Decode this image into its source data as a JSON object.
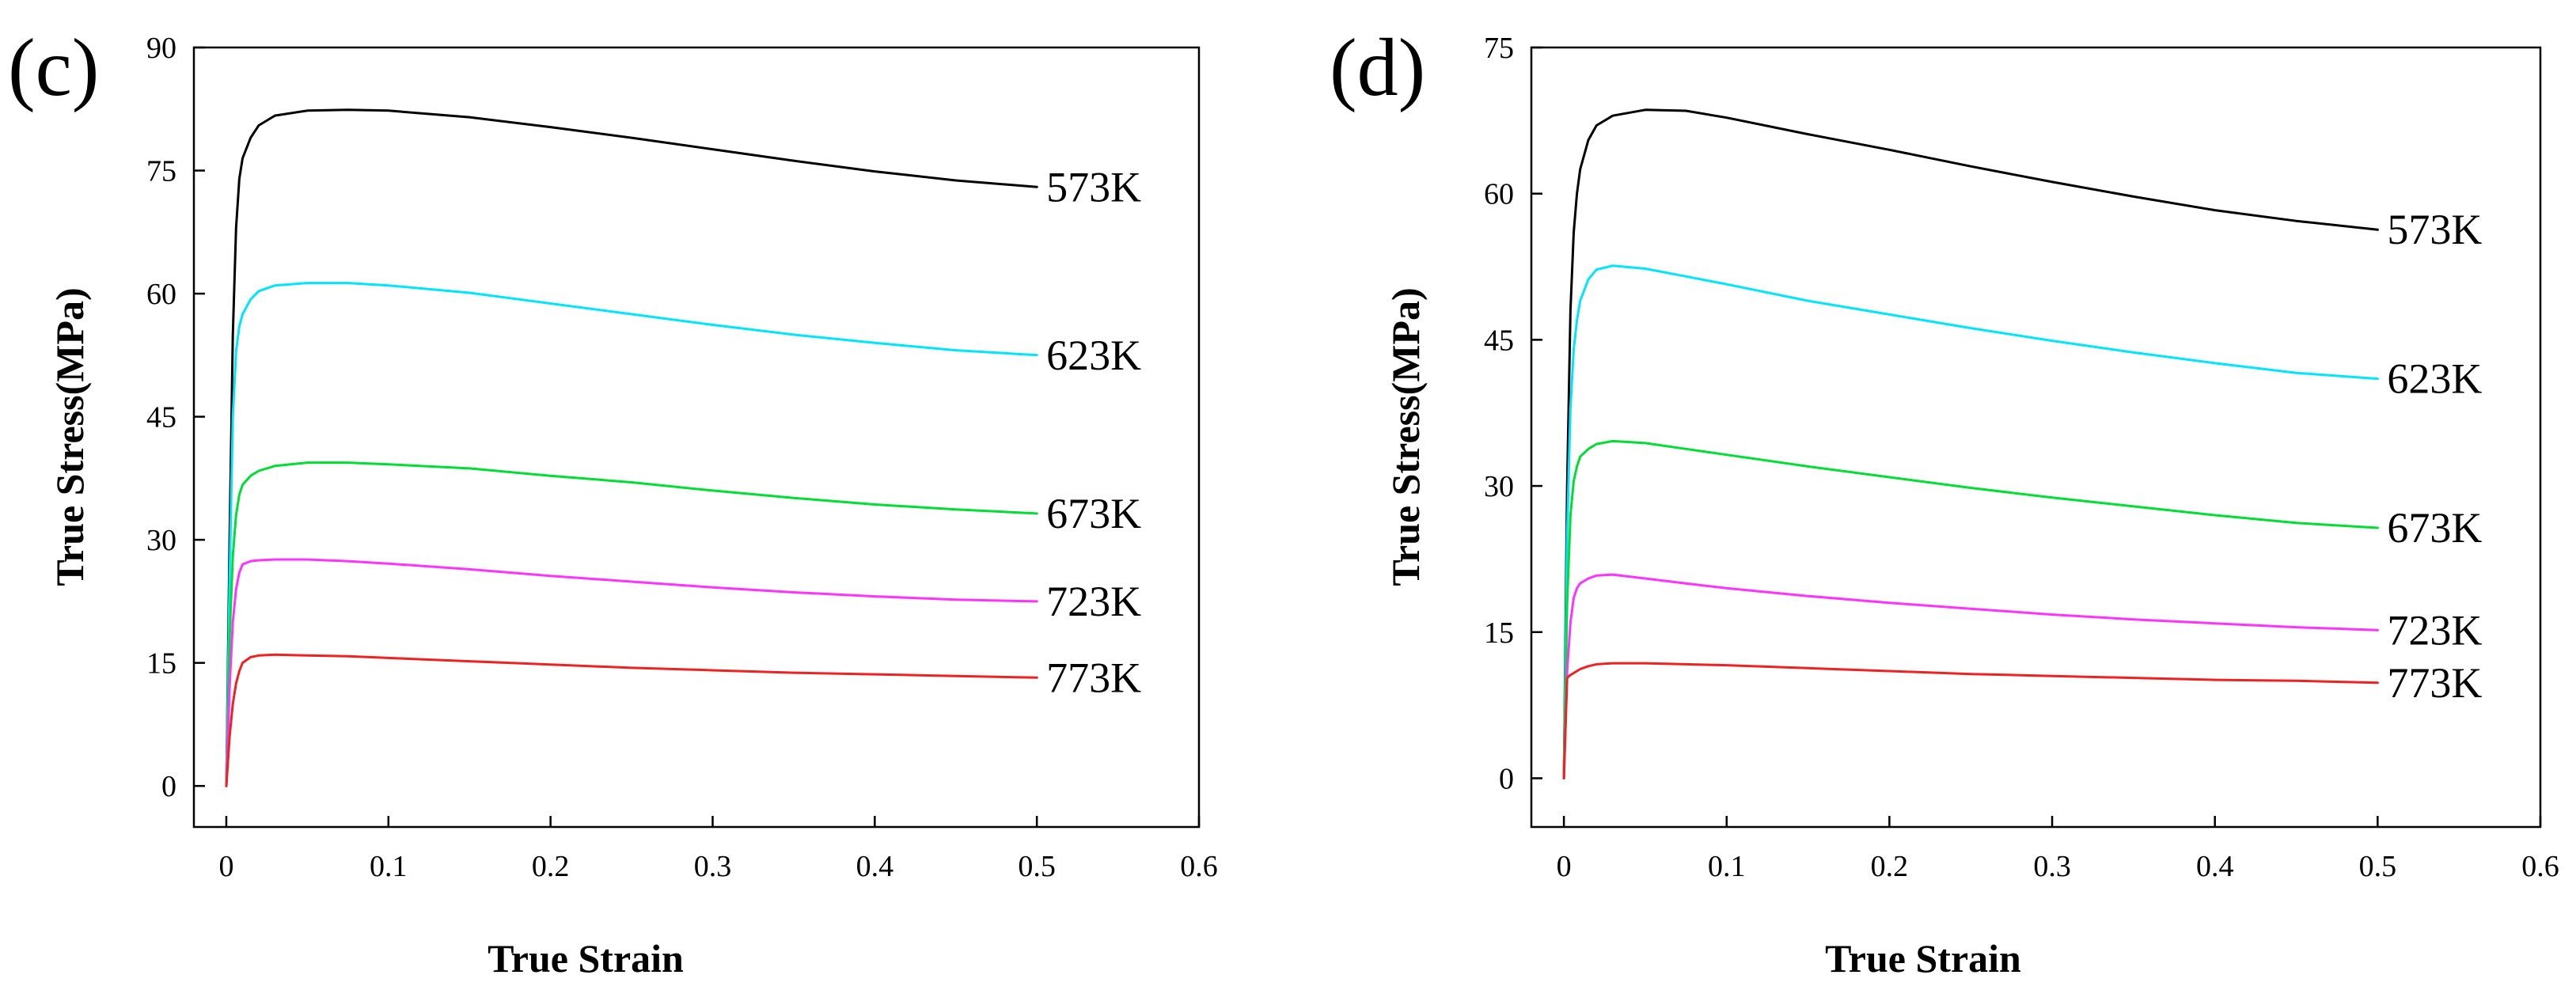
{
  "chart_data": [
    {
      "type": "line",
      "panel_label": "(c)",
      "title": "",
      "xlabel": "True Strain",
      "ylabel": "True Stress(MPa)",
      "xlim": [
        -0.02,
        0.6
      ],
      "ylim": [
        -5,
        90
      ],
      "xticks": [
        0,
        0.1,
        0.2,
        0.3,
        0.4,
        0.5,
        0.6
      ],
      "xtick_labels": [
        "0",
        "0.1",
        "0.2",
        "0.3",
        "0.4",
        "0.5",
        "0.6"
      ],
      "yticks": [
        0,
        15,
        30,
        45,
        60,
        75,
        90
      ],
      "ytick_labels": [
        "0",
        "15",
        "30",
        "45",
        "60",
        "75",
        "90"
      ],
      "grid": false,
      "legend": "inline labels at line ends",
      "series": [
        {
          "name": "573K",
          "color": "#000000",
          "x": [
            0,
            0.002,
            0.004,
            0.006,
            0.008,
            0.01,
            0.015,
            0.02,
            0.03,
            0.05,
            0.075,
            0.1,
            0.15,
            0.2,
            0.25,
            0.3,
            0.35,
            0.4,
            0.45,
            0.5
          ],
          "y": [
            0,
            30,
            55,
            68,
            74,
            76.5,
            79,
            80.5,
            81.7,
            82.3,
            82.4,
            82.3,
            81.5,
            80.3,
            79,
            77.6,
            76.2,
            74.9,
            73.8,
            73
          ]
        },
        {
          "name": "623K",
          "color": "#00e5ff",
          "x": [
            0,
            0.002,
            0.004,
            0.006,
            0.008,
            0.01,
            0.015,
            0.02,
            0.03,
            0.05,
            0.075,
            0.1,
            0.15,
            0.2,
            0.25,
            0.3,
            0.35,
            0.4,
            0.45,
            0.5
          ],
          "y": [
            0,
            25,
            45,
            53,
            56,
            57.5,
            59.3,
            60.3,
            61,
            61.3,
            61.3,
            61,
            60.1,
            58.8,
            57.5,
            56.2,
            55,
            54,
            53.1,
            52.5
          ]
        },
        {
          "name": "673K",
          "color": "#00dd33",
          "x": [
            0,
            0.002,
            0.004,
            0.006,
            0.008,
            0.01,
            0.015,
            0.02,
            0.03,
            0.05,
            0.075,
            0.1,
            0.15,
            0.2,
            0.25,
            0.3,
            0.35,
            0.4,
            0.45,
            0.5
          ],
          "y": [
            0,
            18,
            28,
            33,
            35.5,
            36.7,
            37.8,
            38.4,
            39,
            39.4,
            39.4,
            39.2,
            38.7,
            37.8,
            37,
            36,
            35.1,
            34.3,
            33.7,
            33.2
          ]
        },
        {
          "name": "723K",
          "color": "#ff33ff",
          "x": [
            0,
            0.002,
            0.004,
            0.006,
            0.008,
            0.01,
            0.015,
            0.02,
            0.03,
            0.05,
            0.075,
            0.1,
            0.15,
            0.2,
            0.25,
            0.3,
            0.35,
            0.4,
            0.45,
            0.5
          ],
          "y": [
            0,
            12,
            20,
            24,
            26,
            27,
            27.4,
            27.5,
            27.6,
            27.6,
            27.4,
            27.1,
            26.4,
            25.6,
            24.9,
            24.2,
            23.6,
            23.1,
            22.7,
            22.5
          ]
        },
        {
          "name": "773K",
          "color": "#ee2222",
          "x": [
            0,
            0.002,
            0.004,
            0.006,
            0.008,
            0.01,
            0.015,
            0.02,
            0.03,
            0.05,
            0.075,
            0.1,
            0.15,
            0.2,
            0.25,
            0.3,
            0.35,
            0.4,
            0.45,
            0.5
          ],
          "y": [
            0,
            6,
            10,
            12.5,
            14,
            15,
            15.7,
            15.9,
            16,
            15.9,
            15.8,
            15.6,
            15.2,
            14.8,
            14.4,
            14.1,
            13.8,
            13.6,
            13.4,
            13.2
          ]
        }
      ]
    },
    {
      "type": "line",
      "panel_label": "(d)",
      "title": "",
      "xlabel": "True Strain",
      "ylabel": "True Stress(MPa)",
      "xlim": [
        -0.02,
        0.6
      ],
      "ylim": [
        -5,
        75
      ],
      "xticks": [
        0,
        0.1,
        0.2,
        0.3,
        0.4,
        0.5,
        0.6
      ],
      "xtick_labels": [
        "0",
        "0.1",
        "0.2",
        "0.3",
        "0.4",
        "0.5",
        "0.6"
      ],
      "yticks": [
        0,
        15,
        30,
        45,
        60,
        75
      ],
      "ytick_labels": [
        "0",
        "15",
        "30",
        "45",
        "60",
        "75"
      ],
      "grid": false,
      "legend": "inline labels at line ends",
      "series": [
        {
          "name": "573K",
          "color": "#000000",
          "x": [
            0,
            0.002,
            0.004,
            0.006,
            0.008,
            0.01,
            0.015,
            0.02,
            0.03,
            0.05,
            0.075,
            0.1,
            0.15,
            0.2,
            0.25,
            0.3,
            0.35,
            0.4,
            0.45,
            0.5
          ],
          "y": [
            0,
            30,
            48,
            56,
            60,
            62.5,
            65.5,
            67,
            68,
            68.6,
            68.5,
            67.8,
            66.1,
            64.5,
            62.8,
            61.2,
            59.7,
            58.3,
            57.2,
            56.3
          ]
        },
        {
          "name": "623K",
          "color": "#00e5ff",
          "x": [
            0,
            0.002,
            0.004,
            0.006,
            0.008,
            0.01,
            0.015,
            0.02,
            0.03,
            0.05,
            0.075,
            0.1,
            0.15,
            0.2,
            0.25,
            0.3,
            0.35,
            0.4,
            0.45,
            0.5
          ],
          "y": [
            0,
            25,
            38,
            44,
            47,
            49,
            51.2,
            52.2,
            52.6,
            52.3,
            51.5,
            50.7,
            49,
            47.6,
            46.2,
            44.9,
            43.7,
            42.6,
            41.6,
            41
          ]
        },
        {
          "name": "673K",
          "color": "#00dd33",
          "x": [
            0,
            0.002,
            0.004,
            0.006,
            0.008,
            0.01,
            0.015,
            0.02,
            0.03,
            0.05,
            0.075,
            0.1,
            0.15,
            0.2,
            0.25,
            0.3,
            0.35,
            0.4,
            0.45,
            0.5
          ],
          "y": [
            0,
            18,
            27,
            30.5,
            32,
            33,
            33.8,
            34.3,
            34.6,
            34.4,
            33.8,
            33.2,
            32,
            30.9,
            29.8,
            28.8,
            27.9,
            27,
            26.2,
            25.7
          ]
        },
        {
          "name": "723K",
          "color": "#ff33ff",
          "x": [
            0,
            0.002,
            0.004,
            0.006,
            0.008,
            0.01,
            0.015,
            0.02,
            0.03,
            0.05,
            0.075,
            0.1,
            0.15,
            0.2,
            0.25,
            0.3,
            0.35,
            0.4,
            0.45,
            0.5
          ],
          "y": [
            0,
            11,
            16,
            18.5,
            19.5,
            20,
            20.5,
            20.8,
            20.9,
            20.5,
            20,
            19.5,
            18.7,
            18,
            17.4,
            16.8,
            16.3,
            15.9,
            15.5,
            15.2
          ]
        },
        {
          "name": "773K",
          "color": "#ee2222",
          "x": [
            0,
            0.002,
            0.004,
            0.006,
            0.008,
            0.01,
            0.015,
            0.02,
            0.03,
            0.05,
            0.075,
            0.1,
            0.15,
            0.2,
            0.25,
            0.3,
            0.35,
            0.4,
            0.45,
            0.5
          ],
          "y": [
            0,
            10.3,
            10.6,
            10.8,
            11,
            11.2,
            11.5,
            11.7,
            11.8,
            11.8,
            11.7,
            11.6,
            11.3,
            11,
            10.7,
            10.5,
            10.3,
            10.1,
            10,
            9.8
          ]
        }
      ]
    }
  ]
}
